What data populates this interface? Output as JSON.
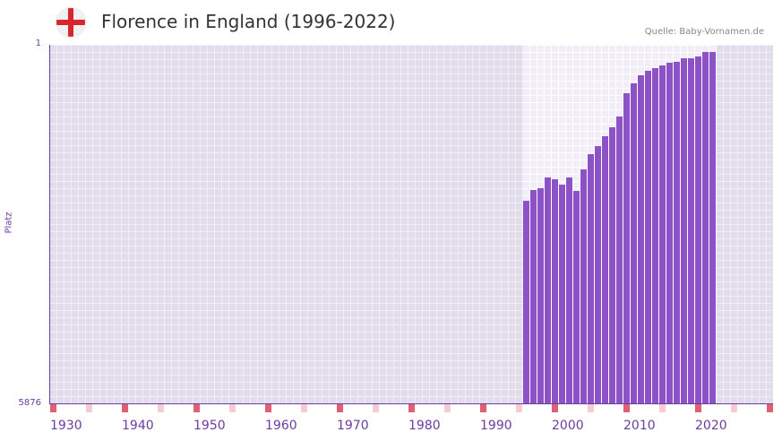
{
  "header": {
    "title": "Florence in England (1996-2022)",
    "source": "Quelle: Baby-Vornamen.de",
    "flag_icon": "england-flag"
  },
  "colors": {
    "bar": "#8c52c6",
    "axis": "#6a3ea1",
    "decade_mark": "#e06072",
    "half_decade_mark": "#f6cbd3"
  },
  "chart_data": {
    "type": "bar",
    "title": "Florence in England (1996-2022)",
    "ylabel": "Platz",
    "y_ticks": [
      "1",
      "5876"
    ],
    "y_range": [
      5876,
      1
    ],
    "x_range": [
      1930,
      2030
    ],
    "x_ticks": [
      "1930",
      "1940",
      "1950",
      "1960",
      "1970",
      "1980",
      "1990",
      "2000",
      "2010",
      "2020"
    ],
    "value_note": "relative bar height (0 = rank 5876, 1 = rank 1)",
    "x": [
      1996,
      1997,
      1998,
      1999,
      2000,
      2001,
      2002,
      2003,
      2004,
      2005,
      2006,
      2007,
      2008,
      2009,
      2010,
      2011,
      2012,
      2013,
      2014,
      2015,
      2016,
      2017,
      2018,
      2019,
      2020,
      2021,
      2022
    ],
    "values": [
      0.565,
      0.595,
      0.6,
      0.63,
      0.625,
      0.61,
      0.63,
      0.593,
      0.653,
      0.695,
      0.718,
      0.745,
      0.77,
      0.8,
      0.865,
      0.893,
      0.915,
      0.928,
      0.935,
      0.943,
      0.95,
      0.953,
      0.963,
      0.963,
      0.968,
      0.98,
      0.98
    ]
  }
}
